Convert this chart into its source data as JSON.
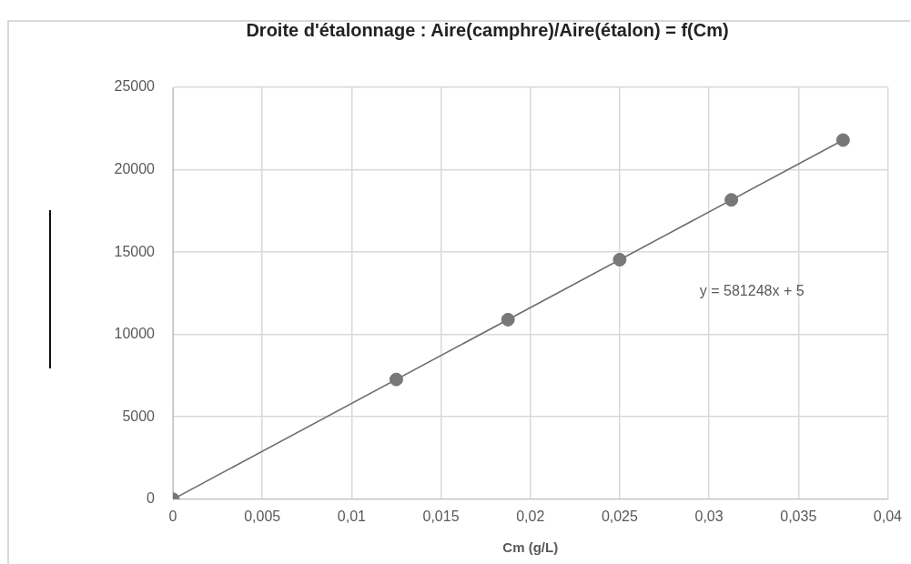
{
  "chart_data": {
    "type": "scatter",
    "title": "Droite d'étalonnage : Aire(camphre)/Aire(étalon) = f(Cm)",
    "xlabel": "Cm (g/L)",
    "x": [
      0,
      0.0125,
      0.01875,
      0.025,
      0.03125,
      0.0375
    ],
    "series": [
      {
        "color": "#787878",
        "marker": "circle",
        "values": [
          0,
          7270,
          10900,
          14540,
          18170,
          21800
        ]
      },
      {
        "type": "line",
        "color": "#6e6e6e",
        "marker": "none",
        "line_style": "solid",
        "x": [
          0,
          0.0375
        ],
        "values": [
          0,
          21800
        ]
      }
    ],
    "xlim": [
      0,
      0.04
    ],
    "xticks": [
      {
        "value": 0,
        "label": "0"
      },
      {
        "value": 0.005,
        "label": "0,005"
      },
      {
        "value": 0.01,
        "label": "0,01"
      },
      {
        "value": 0.015,
        "label": "0,015"
      },
      {
        "value": 0.02,
        "label": "0,02"
      },
      {
        "value": 0.025,
        "label": "0,025"
      },
      {
        "value": 0.03,
        "label": "0,03"
      },
      {
        "value": 0.035,
        "label": "0,035"
      },
      {
        "value": 0.04,
        "label": "0,04"
      }
    ],
    "ylim": [
      0,
      25000
    ],
    "yticks": [
      0,
      5000,
      10000,
      15000,
      20000,
      25000
    ],
    "grid": true,
    "legend": false,
    "annotations": [
      "y = 581248x + 5"
    ]
  }
}
